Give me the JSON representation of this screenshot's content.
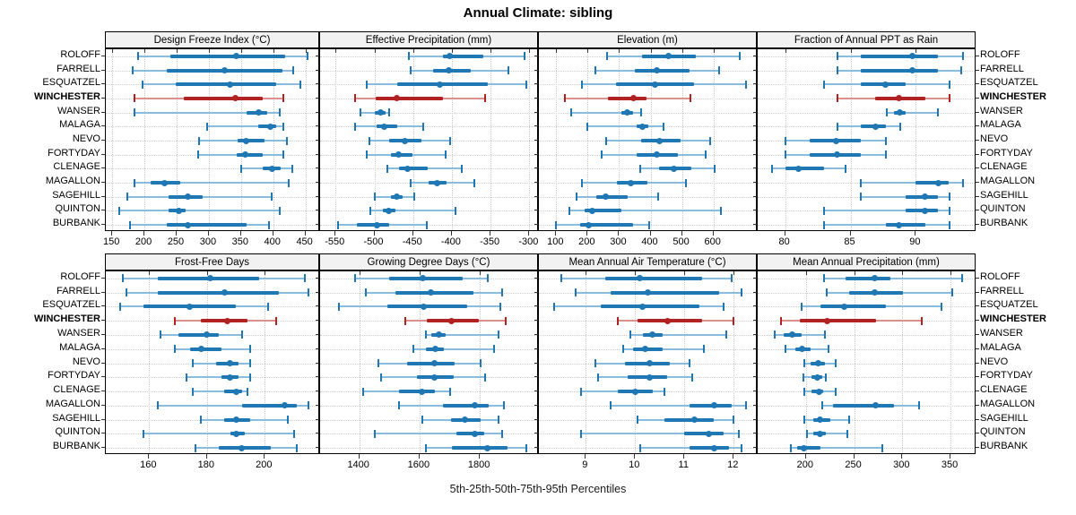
{
  "title": "Annual Climate: sibling",
  "caption": "5th-25th-50th-75th-95th Percentiles",
  "colors": {
    "blue_main": "#1F77B4",
    "blue_light": "#8BBCDE",
    "red_main": "#B22222",
    "red_light": "#D9938C",
    "strip_bg": "#F2F2F2",
    "panel_border": "#000000",
    "grid": "#C9C9C9",
    "tick": "#333333"
  },
  "stations": [
    "ROLOFF",
    "FARRELL",
    "ESQUATZEL",
    "WINCHESTER",
    "WANSER",
    "MALAGA",
    "NEVO",
    "FORTYDAY",
    "CLENAGE",
    "MAGALLON",
    "SAGEHILL",
    "QUINTON",
    "BURBANK"
  ],
  "highlight_station": "WINCHESTER",
  "chart_data": {
    "type": "percentile-trellis",
    "percentiles": [
      5,
      25,
      50,
      75,
      95
    ],
    "layout": {
      "rows": 2,
      "cols": 4
    },
    "panels": [
      {
        "title": "Design Freeze Index (°C)",
        "row": 0,
        "col": 0,
        "xmin": 140,
        "xmax": 470,
        "ticks": [
          150,
          200,
          250,
          300,
          350,
          400,
          450
        ],
        "tick_labels": [
          "150",
          "200",
          "250",
          "300",
          "350",
          "400",
          "450"
        ],
        "values": [
          [
            190,
            240,
            343,
            418,
            453
          ],
          [
            182,
            235,
            325,
            414,
            431
          ],
          [
            197,
            249,
            333,
            405,
            442
          ],
          [
            185,
            261,
            341,
            383,
            415
          ],
          [
            185,
            358,
            377,
            391,
            410
          ],
          [
            298,
            377,
            395,
            405,
            415
          ],
          [
            285,
            345,
            358,
            386,
            421
          ],
          [
            284,
            343,
            357,
            383,
            416
          ],
          [
            350,
            383,
            398,
            412,
            429
          ],
          [
            184,
            210,
            231,
            255,
            424
          ],
          [
            174,
            238,
            267,
            291,
            397
          ],
          [
            161,
            238,
            254,
            264,
            410
          ],
          [
            177,
            235,
            267,
            359,
            394
          ]
        ]
      },
      {
        "title": "Effective Precipitation (mm)",
        "row": 0,
        "col": 1,
        "xmin": -570,
        "xmax": -290,
        "ticks": [
          -550,
          -500,
          -450,
          -400,
          -350,
          -300
        ],
        "tick_labels": [
          "-550",
          "-500",
          "-450",
          "-400",
          "-350",
          "-300"
        ],
        "values": [
          [
            -455,
            -411,
            -403,
            -359,
            -306
          ],
          [
            -453,
            -424,
            -404,
            -376,
            -327
          ],
          [
            -510,
            -470,
            -416,
            -354,
            -304
          ],
          [
            -525,
            -498,
            -471,
            -412,
            -357
          ],
          [
            -518,
            -500,
            -492,
            -486,
            -481
          ],
          [
            -525,
            -497,
            -487,
            -471,
            -437
          ],
          [
            -506,
            -481,
            -461,
            -439,
            -402
          ],
          [
            -510,
            -479,
            -469,
            -451,
            -408
          ],
          [
            -483,
            -468,
            -457,
            -431,
            -387
          ],
          [
            -453,
            -430,
            -419,
            -407,
            -371
          ],
          [
            -500,
            -479,
            -471,
            -464,
            -448
          ],
          [
            -505,
            -489,
            -481,
            -473,
            -395
          ],
          [
            -547,
            -522,
            -497,
            -481,
            -432
          ]
        ]
      },
      {
        "title": "Elevation (m)",
        "row": 0,
        "col": 2,
        "xmin": 45,
        "xmax": 735,
        "ticks": [
          100,
          200,
          300,
          400,
          500,
          600
        ],
        "tick_labels": [
          "100",
          "200",
          "300",
          "400",
          "500",
          "600"
        ],
        "values": [
          [
            262,
            372,
            458,
            545,
            683
          ],
          [
            225,
            350,
            421,
            525,
            617
          ],
          [
            183,
            289,
            413,
            539,
            704
          ],
          [
            128,
            265,
            347,
            388,
            527
          ],
          [
            149,
            306,
            326,
            343,
            369
          ],
          [
            199,
            355,
            375,
            394,
            440
          ],
          [
            260,
            369,
            428,
            496,
            589
          ],
          [
            246,
            355,
            421,
            487,
            575
          ],
          [
            366,
            428,
            473,
            529,
            605
          ],
          [
            183,
            293,
            336,
            391,
            513
          ],
          [
            164,
            227,
            258,
            326,
            423
          ],
          [
            142,
            190,
            216,
            306,
            625
          ],
          [
            100,
            175,
            202,
            345,
            395
          ]
        ]
      },
      {
        "title": "Fraction of Annual PPT as Rain",
        "row": 0,
        "col": 3,
        "xmin": 77.9,
        "xmax": 94.5,
        "ticks": [
          80,
          85,
          90
        ],
        "tick_labels": [
          "80",
          "85",
          "90"
        ],
        "values": [
          [
            84.0,
            85.8,
            89.7,
            91.7,
            93.6
          ],
          [
            84.0,
            85.8,
            89.7,
            91.7,
            93.5
          ],
          [
            83.0,
            85.8,
            87.7,
            89.2,
            92.6
          ],
          [
            84.0,
            86.9,
            88.7,
            90.7,
            92.6
          ],
          [
            87.8,
            88.3,
            88.8,
            89.2,
            91.7
          ],
          [
            84.0,
            85.8,
            86.9,
            87.7,
            88.8
          ],
          [
            80.0,
            81.9,
            83.9,
            85.8,
            87.7
          ],
          [
            80.0,
            81.9,
            84.0,
            85.8,
            87.7
          ],
          [
            79.0,
            80.0,
            81.0,
            83.0,
            84.6
          ],
          [
            85.8,
            90.0,
            91.7,
            92.5,
            93.6
          ],
          [
            85.8,
            89.2,
            90.7,
            91.7,
            92.6
          ],
          [
            83.0,
            89.2,
            90.7,
            91.7,
            92.6
          ],
          [
            83.0,
            87.7,
            88.7,
            90.7,
            92.6
          ]
        ]
      },
      {
        "title": "Frost-Free Days",
        "row": 1,
        "col": 0,
        "xmin": 145,
        "xmax": 218.5,
        "ticks": [
          160,
          180,
          200
        ],
        "tick_labels": [
          "160",
          "180",
          "200"
        ],
        "values": [
          [
            151,
            163,
            181,
            198,
            214
          ],
          [
            152,
            163,
            186,
            205,
            215
          ],
          [
            150,
            158,
            174,
            190,
            201
          ],
          [
            169,
            178,
            187,
            194,
            204
          ],
          [
            164,
            170,
            180,
            184,
            192
          ],
          [
            169,
            174,
            178,
            185,
            195
          ],
          [
            175,
            183,
            188,
            191,
            195
          ],
          [
            173,
            185,
            188,
            191,
            195
          ],
          [
            175,
            186,
            190,
            192,
            194
          ],
          [
            163,
            192,
            207,
            211,
            215
          ],
          [
            178,
            186,
            190,
            195,
            208
          ],
          [
            158,
            188,
            190,
            193,
            210
          ],
          [
            176,
            184,
            192,
            202,
            211
          ]
        ]
      },
      {
        "title": "Growing Degree Days (°C)",
        "row": 1,
        "col": 1,
        "xmin": 1270,
        "xmax": 1990,
        "ticks": [
          1400,
          1600,
          1800
        ],
        "tick_labels": [
          "1400",
          "1600",
          "1800"
        ],
        "values": [
          [
            1385,
            1498,
            1610,
            1742,
            1826
          ],
          [
            1421,
            1519,
            1636,
            1778,
            1875
          ],
          [
            1331,
            1493,
            1614,
            1758,
            1867
          ],
          [
            1553,
            1624,
            1707,
            1797,
            1887
          ],
          [
            1621,
            1639,
            1663,
            1688,
            1862
          ],
          [
            1580,
            1621,
            1651,
            1680,
            1848
          ],
          [
            1463,
            1560,
            1649,
            1716,
            1802
          ],
          [
            1473,
            1592,
            1649,
            1714,
            1817
          ],
          [
            1412,
            1532,
            1607,
            1651,
            1701
          ],
          [
            1532,
            1678,
            1782,
            1828,
            1880
          ],
          [
            1610,
            1704,
            1750,
            1802,
            1863
          ],
          [
            1451,
            1721,
            1782,
            1815,
            1875
          ],
          [
            1621,
            1707,
            1826,
            1893,
            1953
          ]
        ]
      },
      {
        "title": "Mean Annual Air Temperature (°C)",
        "row": 1,
        "col": 2,
        "xmin": 8.05,
        "xmax": 12.45,
        "ticks": [
          9,
          10,
          11,
          12
        ],
        "tick_labels": [
          "9",
          "10",
          "11",
          "12"
        ],
        "values": [
          [
            8.5,
            9.4,
            10.1,
            11.35,
            11.95
          ],
          [
            8.8,
            9.5,
            10.25,
            11.7,
            12.15
          ],
          [
            8.35,
            9.3,
            10.15,
            11.3,
            11.8
          ],
          [
            9.65,
            10.05,
            10.65,
            11.35,
            12.0
          ],
          [
            9.9,
            10.15,
            10.35,
            10.55,
            11.85
          ],
          [
            9.75,
            9.95,
            10.2,
            10.55,
            11.4
          ],
          [
            9.2,
            9.8,
            10.3,
            10.7,
            11.1
          ],
          [
            9.25,
            9.85,
            10.3,
            10.65,
            11.15
          ],
          [
            8.9,
            9.65,
            10.0,
            10.35,
            10.6
          ],
          [
            9.5,
            11.1,
            11.6,
            11.95,
            12.25
          ],
          [
            10.05,
            10.6,
            11.2,
            11.6,
            12.0
          ],
          [
            8.9,
            11.0,
            11.5,
            11.8,
            12.1
          ],
          [
            10.1,
            11.1,
            11.6,
            11.9,
            12.15
          ]
        ]
      },
      {
        "title": "Mean Annual Precipitation (mm)",
        "row": 1,
        "col": 3,
        "xmin": 150,
        "xmax": 375,
        "ticks": [
          200,
          250,
          300,
          350
        ],
        "tick_labels": [
          "200",
          "250",
          "300",
          "350"
        ],
        "values": [
          [
            219,
            241,
            271,
            288,
            362
          ],
          [
            222,
            245,
            271,
            301,
            352
          ],
          [
            196,
            215,
            240,
            283,
            341
          ],
          [
            174,
            194,
            222,
            273,
            320
          ],
          [
            168,
            177,
            186,
            196,
            220
          ],
          [
            179,
            189,
            196,
            205,
            223
          ],
          [
            198,
            205,
            213,
            220,
            231
          ],
          [
            197,
            206,
            212,
            217,
            221
          ],
          [
            198,
            206,
            214,
            218,
            231
          ],
          [
            217,
            228,
            272,
            291,
            317
          ],
          [
            198,
            208,
            215,
            225,
            245
          ],
          [
            201,
            208,
            215,
            221,
            243
          ],
          [
            184,
            191,
            198,
            215,
            279
          ]
        ]
      }
    ]
  }
}
